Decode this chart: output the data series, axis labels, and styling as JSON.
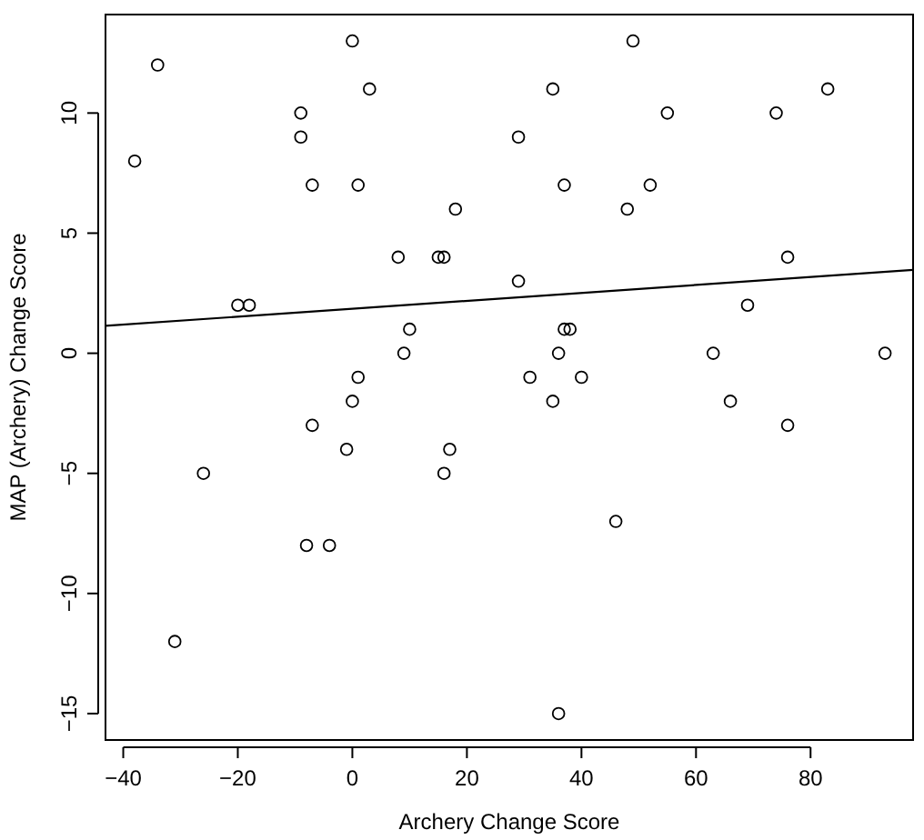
{
  "chart_data": {
    "type": "scatter",
    "xlabel": "Archery Change Score",
    "ylabel": "MAP (Archery) Change Score",
    "xlim": [
      -43.1,
      97.9
    ],
    "ylim": [
      -16.1,
      14.1
    ],
    "xticks": [
      -40,
      -20,
      0,
      20,
      40,
      60,
      80
    ],
    "yticks": [
      -15,
      -10,
      -5,
      0,
      5,
      10
    ],
    "marker": "circle",
    "grid": false,
    "series": [
      {
        "color": "#000000",
        "x": [
          -34,
          -38,
          0,
          3,
          -9,
          -9,
          -7,
          1,
          18,
          8,
          15,
          16,
          -20,
          -18,
          10,
          9,
          1,
          0,
          -7,
          -1,
          17,
          16,
          -26,
          -8,
          -4,
          -31,
          49,
          35,
          83,
          55,
          74,
          29,
          37,
          52,
          48,
          76,
          29,
          69,
          37,
          38,
          36,
          63,
          93,
          31,
          40,
          35,
          66,
          76,
          46,
          36
        ],
        "values": [
          12,
          8,
          13,
          11,
          10,
          9,
          7,
          7,
          6,
          4,
          4,
          4,
          2,
          2,
          1,
          0,
          -1,
          -2,
          -3,
          -4,
          -4,
          -5,
          -5,
          -8,
          -8,
          -12,
          13,
          11,
          11,
          10,
          10,
          9,
          7,
          7,
          6,
          4,
          3,
          2,
          1,
          1,
          0,
          0,
          0,
          -1,
          -1,
          -2,
          -2,
          -3,
          -7,
          -15
        ]
      },
      {
        "type": "line",
        "color": "#000000",
        "marker": "none",
        "x": [
          -43.1,
          97.9
        ],
        "values": [
          1.14,
          3.47
        ]
      }
    ]
  }
}
